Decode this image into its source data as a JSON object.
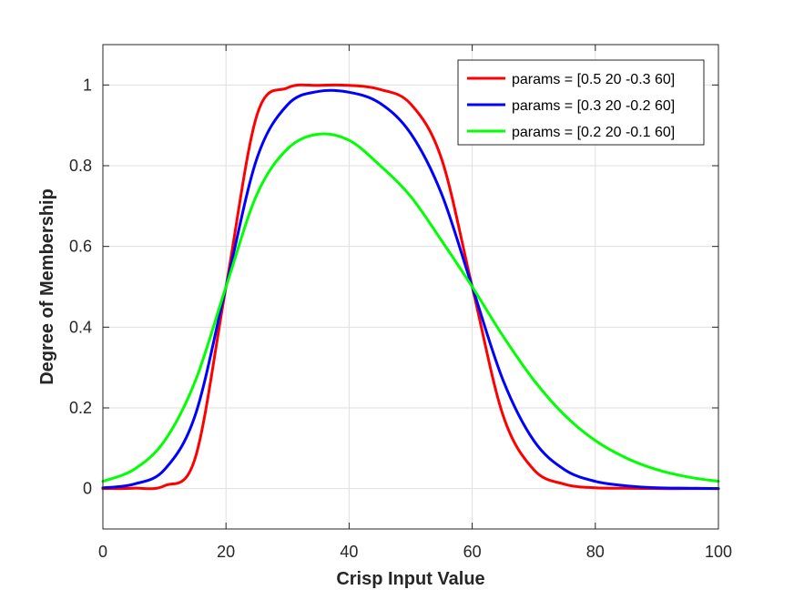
{
  "chart_data": {
    "type": "line",
    "title": "",
    "xlabel": "Crisp Input Value",
    "ylabel": "Degree of Membership",
    "xlim": [
      0,
      100
    ],
    "ylim": [
      -0.1,
      1.1
    ],
    "xticks": [
      0,
      20,
      40,
      60,
      80,
      100
    ],
    "yticks": [
      0,
      0.2,
      0.4,
      0.6,
      0.8,
      1
    ],
    "xtick_labels": [
      "0",
      "20",
      "40",
      "60",
      "80",
      "100"
    ],
    "ytick_labels": [
      "0",
      "0.2",
      "0.4",
      "0.6",
      "0.8",
      "1"
    ],
    "grid": true,
    "legend_position": "top-right",
    "x": [
      0,
      5,
      10,
      15,
      20,
      25,
      30,
      35,
      40,
      45,
      50,
      55,
      60,
      65,
      70,
      75,
      80,
      85,
      90,
      95,
      100
    ],
    "series": [
      {
        "name": "params = [0.5 20 -0.3 60]",
        "color": "#ff0000",
        "values": [
          0.0,
          0.001,
          0.007,
          0.076,
          0.5,
          0.924,
          0.993,
          0.999,
          0.999,
          0.989,
          0.953,
          0.818,
          0.5,
          0.182,
          0.047,
          0.011,
          0.002,
          0.001,
          0.0,
          0.0,
          0.0
        ]
      },
      {
        "name": "params = [0.3 20 -0.2 60]",
        "color": "#0000ff",
        "values": [
          0.002,
          0.011,
          0.047,
          0.182,
          0.5,
          0.817,
          0.951,
          0.984,
          0.982,
          0.955,
          0.88,
          0.731,
          0.5,
          0.269,
          0.119,
          0.047,
          0.018,
          0.007,
          0.002,
          0.001,
          0.0
        ]
      },
      {
        "name": "params = [0.2 20 -0.1 60]",
        "color": "#00ff00",
        "values": [
          0.018,
          0.047,
          0.118,
          0.266,
          0.5,
          0.728,
          0.842,
          0.878,
          0.863,
          0.801,
          0.724,
          0.615,
          0.5,
          0.378,
          0.269,
          0.182,
          0.119,
          0.076,
          0.047,
          0.029,
          0.018
        ]
      }
    ]
  }
}
